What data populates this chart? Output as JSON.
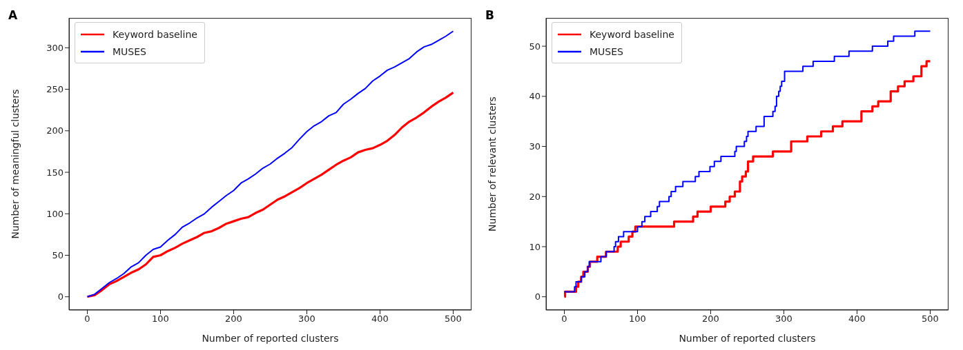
{
  "chart_data": [
    {
      "type": "line",
      "title": "A",
      "xlabel": "Number of reported clusters",
      "ylabel": "Number of meaningful clusters",
      "legend": "top left",
      "xlim": [
        -25,
        525
      ],
      "xticks": [
        0,
        100,
        200,
        300,
        400,
        500
      ],
      "ylim": [
        -16,
        336
      ],
      "yticks": [
        0,
        50,
        100,
        150,
        200,
        250,
        300
      ],
      "x": [
        0,
        10,
        20,
        30,
        40,
        50,
        60,
        70,
        80,
        90,
        100,
        110,
        120,
        130,
        140,
        150,
        160,
        170,
        180,
        190,
        200,
        210,
        220,
        230,
        240,
        250,
        260,
        270,
        280,
        290,
        300,
        310,
        320,
        330,
        340,
        350,
        360,
        370,
        380,
        390,
        400,
        410,
        420,
        430,
        440,
        450,
        460,
        470,
        480,
        490,
        500
      ],
      "series": [
        {
          "name": "Keyword baseline",
          "color": "#ff0000",
          "values": [
            0,
            2,
            8,
            15,
            19,
            24,
            29,
            33,
            39,
            48,
            50,
            55,
            59,
            64,
            68,
            72,
            77,
            79,
            83,
            88,
            91,
            94,
            96,
            101,
            105,
            111,
            117,
            121,
            126,
            131,
            137,
            142,
            147,
            153,
            159,
            164,
            168,
            174,
            177,
            179,
            183,
            188,
            195,
            204,
            211,
            216,
            222,
            229,
            235,
            240,
            246
          ]
        },
        {
          "name": "MUSES",
          "color": "#0000ff",
          "values": [
            0,
            3,
            10,
            17,
            22,
            28,
            36,
            41,
            50,
            57,
            60,
            68,
            75,
            84,
            89,
            95,
            100,
            108,
            115,
            122,
            128,
            137,
            142,
            148,
            155,
            160,
            167,
            173,
            180,
            190,
            199,
            206,
            211,
            218,
            222,
            232,
            238,
            245,
            251,
            260,
            266,
            273,
            277,
            282,
            287,
            295,
            301,
            304,
            309,
            314,
            320
          ]
        }
      ]
    },
    {
      "type": "step",
      "title": "B",
      "xlabel": "Number of reported clusters",
      "ylabel": "Number of relevant clusters",
      "legend": "top left",
      "xlim": [
        -25,
        525
      ],
      "xticks": [
        0,
        100,
        200,
        300,
        400,
        500
      ],
      "ylim": [
        -2.65,
        55.65
      ],
      "yticks": [
        0,
        10,
        20,
        30,
        40,
        50
      ],
      "series": [
        {
          "name": "Keyword baseline",
          "color": "#ff0000",
          "x": [
            0,
            1,
            16,
            19,
            23,
            26,
            32,
            35,
            45,
            57,
            73,
            77,
            88,
            93,
            97,
            150,
            176,
            182,
            200,
            220,
            226,
            233,
            240,
            243,
            248,
            251,
            258,
            285,
            310,
            332,
            351,
            367,
            380,
            406,
            421,
            429,
            446,
            456,
            465,
            477,
            488,
            495,
            500
          ],
          "values": [
            0,
            1,
            2,
            3,
            4,
            5,
            6,
            7,
            8,
            9,
            10,
            11,
            12,
            13,
            14,
            15,
            16,
            17,
            18,
            19,
            20,
            21,
            23,
            24,
            25,
            27,
            28,
            29,
            31,
            32,
            33,
            34,
            35,
            37,
            38,
            39,
            41,
            42,
            43,
            44,
            46,
            47,
            47
          ]
        },
        {
          "name": "MUSES",
          "color": "#0000ff",
          "x": [
            0,
            14,
            16,
            23,
            28,
            32,
            34,
            50,
            57,
            68,
            70,
            74,
            81,
            100,
            106,
            110,
            118,
            127,
            130,
            143,
            146,
            152,
            162,
            179,
            184,
            199,
            205,
            214,
            233,
            235,
            246,
            249,
            251,
            262,
            273,
            285,
            288,
            290,
            293,
            295,
            297,
            301,
            326,
            340,
            369,
            389,
            421,
            442,
            450,
            479,
            500
          ],
          "values": [
            1,
            2,
            3,
            4,
            5,
            6,
            7,
            8,
            9,
            10,
            11,
            12,
            13,
            14,
            15,
            16,
            17,
            18,
            19,
            20,
            21,
            22,
            23,
            24,
            25,
            26,
            27,
            28,
            29,
            30,
            31,
            32,
            33,
            34,
            36,
            37,
            38,
            40,
            41,
            42,
            43,
            45,
            46,
            47,
            48,
            49,
            50,
            51,
            52,
            53,
            53
          ]
        }
      ]
    }
  ]
}
